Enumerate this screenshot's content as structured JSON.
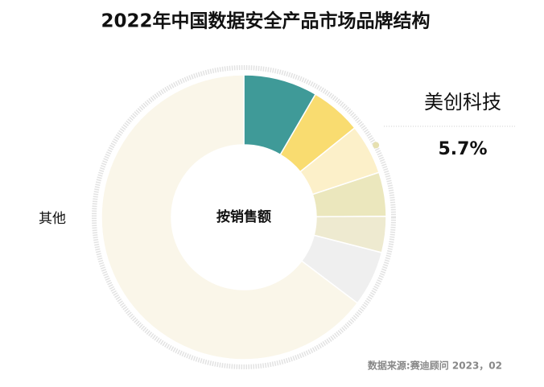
{
  "chart_data": {
    "type": "donut",
    "title": "2022年中国数据安全产品市场品牌结构",
    "center_label": "按销售额",
    "source": "数据来源:赛迪顾问 2023，02",
    "categories": [
      null,
      null,
      "美创科技",
      null,
      null,
      null,
      "其他"
    ],
    "values": [
      8.4,
      5.8,
      5.7,
      5.0,
      4.1,
      6.3,
      64.7
    ],
    "value_labels": [
      null,
      null,
      "5.7%",
      null,
      null,
      null,
      null
    ],
    "colors": [
      "#3f9a98",
      "#f9dc70",
      "#fcf0c9",
      "#ebe7bd",
      "#eeead0",
      "#efefef",
      "#faf6e9"
    ]
  }
}
